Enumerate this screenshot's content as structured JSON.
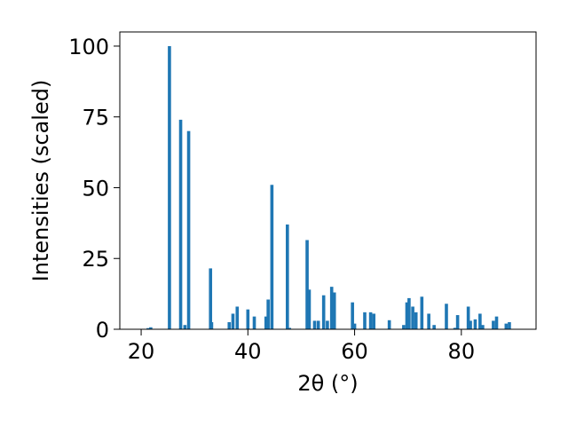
{
  "chart_data": {
    "type": "bar",
    "title": "",
    "xlabel": "2θ (°)",
    "ylabel": "Intensities (scaled)",
    "xlim": [
      16.0,
      94.0
    ],
    "ylim": [
      0,
      105
    ],
    "xticks": [
      20,
      40,
      60,
      80
    ],
    "yticks": [
      0,
      25,
      50,
      75,
      100
    ],
    "bar_color": "#1f77b4",
    "grid": false,
    "legend": "none",
    "series": [
      {
        "x": [
          21.3,
          21.8,
          25.3,
          27.4,
          28.2,
          28.9,
          33.0,
          33.2,
          36.5,
          37.2,
          38.0,
          40.0,
          41.2,
          43.4,
          43.8,
          44.5,
          47.4,
          47.8,
          51.1,
          51.5,
          52.5,
          53.2,
          54.2,
          54.9,
          55.7,
          56.2,
          59.6,
          60.0,
          61.9,
          63.0,
          63.6,
          66.5,
          69.2,
          69.8,
          70.2,
          70.9,
          71.5,
          72.6,
          73.9,
          74.9,
          77.2,
          78.8,
          79.3,
          81.3,
          81.7,
          82.6,
          83.5,
          84.0,
          86.0,
          86.6,
          88.4,
          89.0
        ],
        "values": [
          0.4,
          0.7,
          100,
          74,
          1.5,
          70,
          21.5,
          2.5,
          2.5,
          5.5,
          8,
          7,
          4.5,
          4.5,
          10.5,
          51,
          37,
          0.5,
          31.5,
          14,
          3,
          3,
          12,
          3,
          15,
          13,
          9.5,
          2,
          6,
          6,
          5.5,
          3.2,
          1.5,
          9.5,
          11,
          8,
          6,
          11.5,
          5.5,
          1.5,
          9,
          0.5,
          5,
          8,
          3,
          3.5,
          5.5,
          1.5,
          3,
          4.5,
          2,
          2.5
        ]
      }
    ]
  }
}
